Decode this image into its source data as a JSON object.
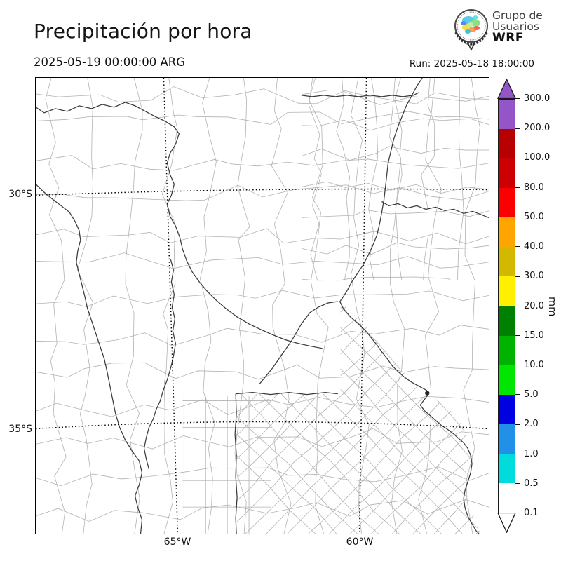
{
  "header": {
    "title": "Precipitación por hora",
    "valid_time": "2025-05-19 00:00:00 ARG",
    "run_label": "Run: 2025-05-18 18:00:00",
    "logo": {
      "line1": "Grupo de",
      "line2": "Usuarios",
      "line3": "WRF"
    }
  },
  "map": {
    "lat30": "30°S",
    "lat35": "35°S",
    "lon65": "65°W",
    "lon60": "60°W"
  },
  "colorbar": {
    "unit": "mm",
    "ticks": [
      "300.0",
      "200.0",
      "100.0",
      "80.0",
      "50.0",
      "40.0",
      "30.0",
      "20.0",
      "15.0",
      "10.0",
      "5.0",
      "2.0",
      "1.0",
      "0.5",
      "0.1"
    ],
    "segment_colors": [
      "#9355C8",
      "#B70000",
      "#CC0000",
      "#FA0000",
      "#FFA500",
      "#D3B800",
      "#FFF000",
      "#008000",
      "#00B300",
      "#00E600",
      "#0000E0",
      "#2191E8",
      "#00DCDC",
      "#FFFFFF"
    ],
    "extend_over_color": "#9355C8",
    "extend_under_color": "#FFFFFF",
    "outline_color": "#1a1a1a"
  }
}
